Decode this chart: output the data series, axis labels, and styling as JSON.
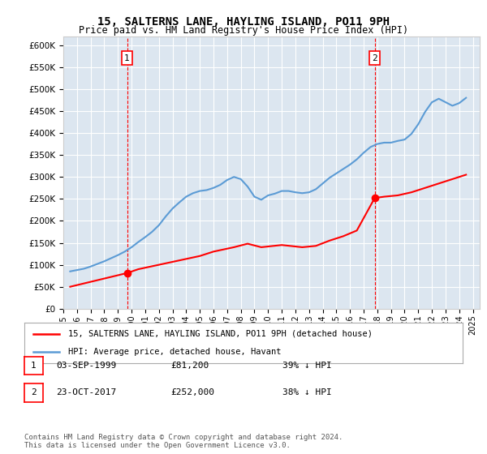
{
  "title": "15, SALTERNS LANE, HAYLING ISLAND, PO11 9PH",
  "subtitle": "Price paid vs. HM Land Registry's House Price Index (HPI)",
  "ylabel_ticks": [
    "£0",
    "£50K",
    "£100K",
    "£150K",
    "£200K",
    "£250K",
    "£300K",
    "£350K",
    "£400K",
    "£450K",
    "£500K",
    "£550K",
    "£600K"
  ],
  "ytick_values": [
    0,
    50000,
    100000,
    150000,
    200000,
    250000,
    300000,
    350000,
    400000,
    450000,
    500000,
    550000,
    600000
  ],
  "ylim": [
    0,
    620000
  ],
  "xlim_start": 1995.0,
  "xlim_end": 2025.5,
  "background_color": "#dce6f0",
  "plot_bg_color": "#dce6f0",
  "grid_color": "#ffffff",
  "hpi_color": "#5b9bd5",
  "sale_color": "#ff0000",
  "dashed_color": "#ff0000",
  "legend_label_sale": "15, SALTERNS LANE, HAYLING ISLAND, PO11 9PH (detached house)",
  "legend_label_hpi": "HPI: Average price, detached house, Havant",
  "sale1_x": 1999.67,
  "sale1_y": 81200,
  "sale1_label": "1",
  "sale2_x": 2017.81,
  "sale2_y": 252000,
  "sale2_label": "2",
  "footer": "Contains HM Land Registry data © Crown copyright and database right 2024.\nThis data is licensed under the Open Government Licence v3.0.",
  "table_rows": [
    {
      "num": "1",
      "date": "03-SEP-1999",
      "price": "£81,200",
      "note": "39% ↓ HPI"
    },
    {
      "num": "2",
      "date": "23-OCT-2017",
      "price": "£252,000",
      "note": "38% ↓ HPI"
    }
  ],
  "hpi_data": {
    "years": [
      1995.5,
      1996.0,
      1996.5,
      1997.0,
      1997.5,
      1998.0,
      1998.5,
      1999.0,
      1999.5,
      2000.0,
      2000.5,
      2001.0,
      2001.5,
      2002.0,
      2002.5,
      2003.0,
      2003.5,
      2004.0,
      2004.5,
      2005.0,
      2005.5,
      2006.0,
      2006.5,
      2007.0,
      2007.5,
      2008.0,
      2008.5,
      2009.0,
      2009.5,
      2010.0,
      2010.5,
      2011.0,
      2011.5,
      2012.0,
      2012.5,
      2013.0,
      2013.5,
      2014.0,
      2014.5,
      2015.0,
      2015.5,
      2016.0,
      2016.5,
      2017.0,
      2017.5,
      2018.0,
      2018.5,
      2019.0,
      2019.5,
      2020.0,
      2020.5,
      2021.0,
      2021.5,
      2022.0,
      2022.5,
      2023.0,
      2023.5,
      2024.0,
      2024.5
    ],
    "values": [
      85000,
      88000,
      91000,
      96000,
      102000,
      108000,
      115000,
      122000,
      130000,
      140000,
      152000,
      163000,
      175000,
      190000,
      210000,
      228000,
      242000,
      255000,
      263000,
      268000,
      270000,
      275000,
      282000,
      293000,
      300000,
      295000,
      278000,
      255000,
      248000,
      258000,
      262000,
      268000,
      268000,
      265000,
      263000,
      265000,
      272000,
      285000,
      298000,
      308000,
      318000,
      328000,
      340000,
      355000,
      368000,
      375000,
      378000,
      378000,
      382000,
      385000,
      398000,
      420000,
      448000,
      470000,
      478000,
      470000,
      462000,
      468000,
      480000
    ]
  },
  "sale_line_data": {
    "x": [
      1995.5,
      1999.67,
      2000.5,
      2002.0,
      2003.5,
      2005.0,
      2006.0,
      2007.5,
      2008.5,
      2009.5,
      2011.0,
      2012.5,
      2013.5,
      2014.5,
      2015.5,
      2016.5,
      2017.81,
      2018.5,
      2019.5,
      2020.5,
      2021.5,
      2022.5,
      2023.5,
      2024.5
    ],
    "y": [
      50000,
      81200,
      90000,
      100000,
      110000,
      120000,
      130000,
      140000,
      148000,
      140000,
      145000,
      140000,
      143000,
      155000,
      165000,
      178000,
      252000,
      255000,
      258000,
      265000,
      275000,
      285000,
      295000,
      305000
    ]
  }
}
